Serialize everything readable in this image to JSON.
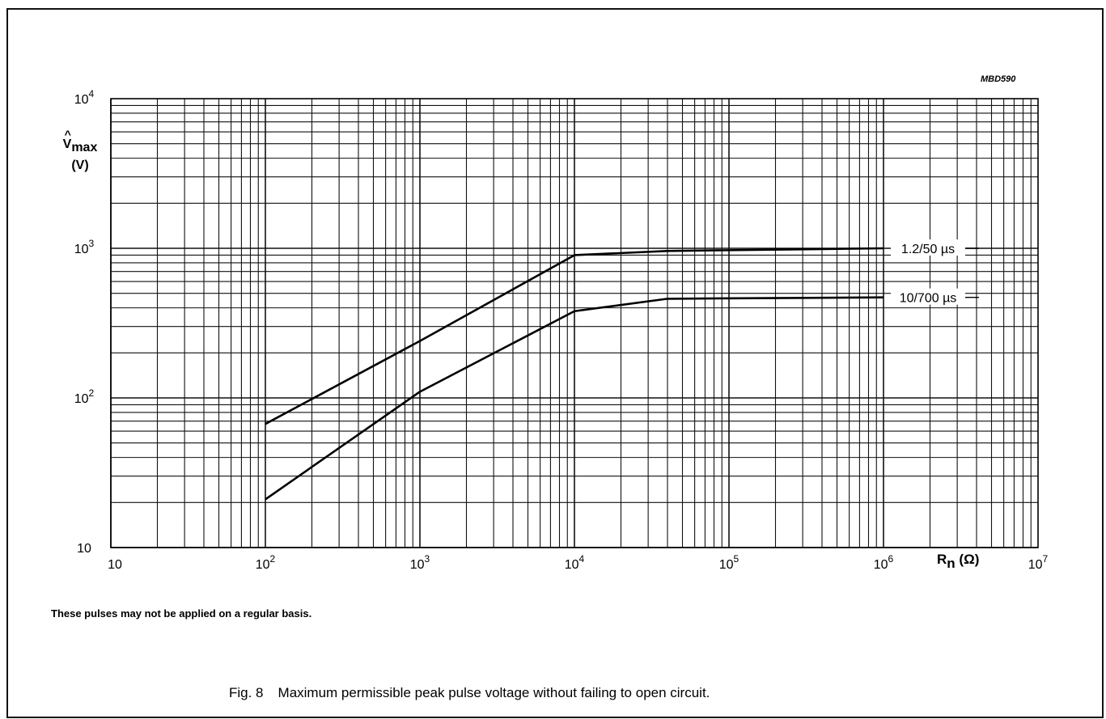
{
  "figure_code": "MBD590",
  "footnote": "These pulses may not be applied on a regular basis.",
  "caption": {
    "number": "Fig. 8",
    "text": "Maximum permissible peak pulse voltage without failing to open circuit."
  },
  "chart_data": {
    "type": "line",
    "x_scale": "log",
    "y_scale": "log",
    "xlim": [
      10,
      10000000
    ],
    "ylim": [
      10,
      10000
    ],
    "grid": true,
    "ylabel": {
      "symbol": "V",
      "hat": "^",
      "subscript": "max",
      "unit": "(V)"
    },
    "xlabel": {
      "symbol": "R",
      "subscript": "n",
      "unit": "(Ω)"
    },
    "x_ticks": [
      {
        "value": 10,
        "base": "10",
        "exp": ""
      },
      {
        "value": 100,
        "base": "10",
        "exp": "2"
      },
      {
        "value": 1000,
        "base": "10",
        "exp": "3"
      },
      {
        "value": 10000,
        "base": "10",
        "exp": "4"
      },
      {
        "value": 100000,
        "base": "10",
        "exp": "5"
      },
      {
        "value": 1000000,
        "base": "10",
        "exp": "6"
      },
      {
        "value": 10000000,
        "base": "10",
        "exp": "7"
      }
    ],
    "y_ticks": [
      {
        "value": 10,
        "base": "10",
        "exp": ""
      },
      {
        "value": 100,
        "base": "10",
        "exp": "2"
      },
      {
        "value": 1000,
        "base": "10",
        "exp": "3"
      },
      {
        "value": 10000,
        "base": "10",
        "exp": "4"
      }
    ],
    "series": [
      {
        "name": "1.2/50 µs",
        "points": [
          [
            100,
            67
          ],
          [
            1000,
            240
          ],
          [
            10000,
            900
          ],
          [
            40000,
            960
          ],
          [
            1000000,
            1000
          ]
        ]
      },
      {
        "name": "10/700 µs",
        "points": [
          [
            100,
            21
          ],
          [
            1000,
            110
          ],
          [
            10000,
            380
          ],
          [
            40000,
            460
          ],
          [
            1000000,
            470
          ]
        ]
      }
    ]
  }
}
